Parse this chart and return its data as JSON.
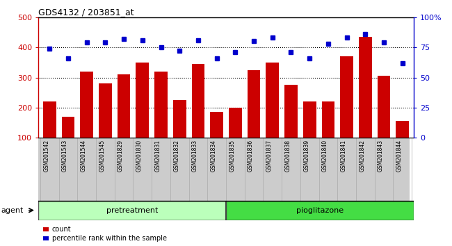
{
  "title": "GDS4132 / 203851_at",
  "categories": [
    "GSM201542",
    "GSM201543",
    "GSM201544",
    "GSM201545",
    "GSM201829",
    "GSM201830",
    "GSM201831",
    "GSM201832",
    "GSM201833",
    "GSM201834",
    "GSM201835",
    "GSM201836",
    "GSM201837",
    "GSM201838",
    "GSM201839",
    "GSM201840",
    "GSM201841",
    "GSM201842",
    "GSM201843",
    "GSM201844"
  ],
  "counts": [
    220,
    170,
    320,
    280,
    310,
    350,
    320,
    225,
    345,
    185,
    200,
    325,
    350,
    275,
    220,
    220,
    370,
    435,
    305,
    155
  ],
  "percentiles": [
    74,
    66,
    79,
    79,
    82,
    81,
    75,
    72,
    81,
    66,
    71,
    80,
    83,
    71,
    66,
    78,
    83,
    86,
    79,
    62
  ],
  "pretreatment_count": 10,
  "pioglitazone_count": 10,
  "ylim_left": [
    100,
    500
  ],
  "ylim_right": [
    0,
    100
  ],
  "yticks_left": [
    100,
    200,
    300,
    400,
    500
  ],
  "yticks_right": [
    0,
    25,
    50,
    75,
    100
  ],
  "ytick_labels_right": [
    "0",
    "25",
    "50",
    "75",
    "100%"
  ],
  "bar_color": "#cc0000",
  "dot_color": "#0000cc",
  "pretreat_color": "#bbffbb",
  "pioglitazone_color": "#44dd44",
  "plot_bg_color": "#ffffff",
  "legend_count_label": "count",
  "legend_pct_label": "percentile rank within the sample",
  "xlabel_bg_color": "#cccccc",
  "xlabel_edge_color": "#aaaaaa"
}
